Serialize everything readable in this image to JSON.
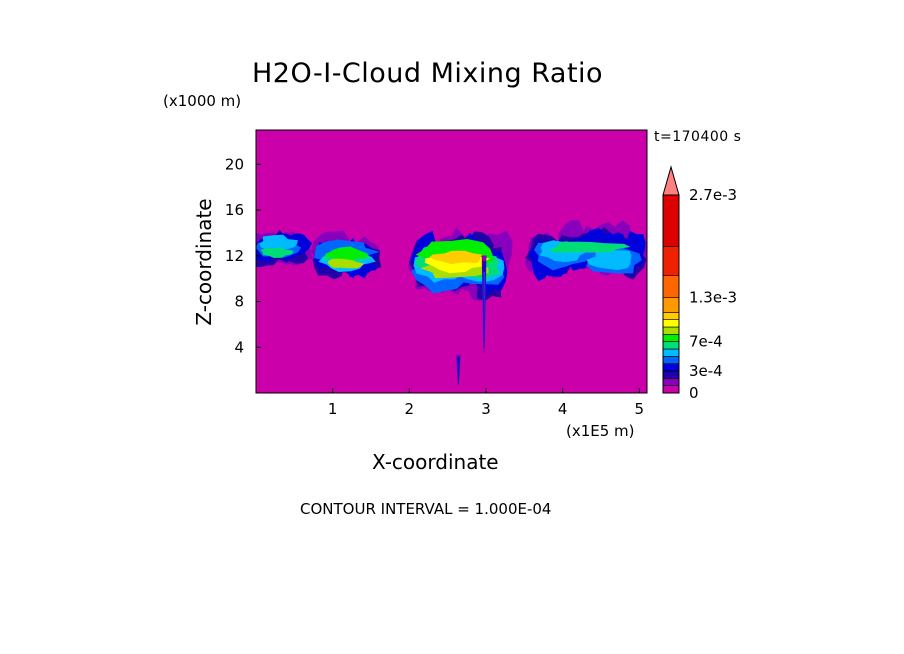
{
  "title": "H2O-I-Cloud Mixing Ratio",
  "z_unit": "(x1000 m)",
  "x_unit": "(x1E5 m)",
  "time_label": "t=170400 s",
  "contour_interval": "CONTOUR INTERVAL = 1.000E-04",
  "chart_data": {
    "type": "heatmap",
    "title": "H2O-I-Cloud Mixing Ratio",
    "xlabel": "X-coordinate",
    "ylabel": "Z-coordinate",
    "xlim": [
      0,
      5.1
    ],
    "ylim": [
      0,
      23
    ],
    "xticks": [
      1,
      2,
      3,
      4,
      5
    ],
    "yticks": [
      4,
      8,
      12,
      16,
      20
    ],
    "colorbar": {
      "ticks": [
        "2.7e-3",
        "1.3e-3",
        "7e-4",
        "3e-4",
        "0"
      ],
      "tick_values": [
        0.0027,
        0.0013,
        0.0007,
        0.0003,
        0
      ],
      "levels": [
        0,
        0.0001,
        0.0002,
        0.0003,
        0.0004,
        0.0005,
        0.0006,
        0.0007,
        0.0008,
        0.0009,
        0.001,
        0.0011,
        0.0013,
        0.0016,
        0.002,
        0.0027
      ],
      "colors": [
        "#cc00aa",
        "#8800bb",
        "#2200aa",
        "#0000dd",
        "#0066ff",
        "#00bbff",
        "#00dd77",
        "#00ee00",
        "#aadd00",
        "#ffff00",
        "#ffcc00",
        "#ff9900",
        "#ff6600",
        "#ee2200",
        "#dd0000",
        "#ff8080"
      ],
      "extend": "max"
    },
    "background_color": "#cc00aa",
    "features": [
      {
        "name": "left cloud",
        "x_range": [
          0.0,
          0.65
        ],
        "z_range": [
          10.5,
          14.0
        ],
        "max_level": 6
      },
      {
        "name": "cloud near 1.1",
        "x_range": [
          0.85,
          1.55
        ],
        "z_range": [
          9.5,
          13.5
        ],
        "max_level": 8
      },
      {
        "name": "central cloud cluster",
        "x_range": [
          2.1,
          3.25
        ],
        "z_range": [
          8.0,
          13.5
        ],
        "max_level": 10
      },
      {
        "name": "right cloud band",
        "x_range": [
          3.55,
          5.1
        ],
        "z_range": [
          9.5,
          14.0
        ],
        "max_level": 6
      },
      {
        "name": "fall streak near 3.0",
        "x_range": [
          2.95,
          3.0
        ],
        "z_range": [
          3.0,
          12.5
        ],
        "max_level": 4
      },
      {
        "name": "fall streak near 2.65",
        "x_range": [
          2.62,
          2.66
        ],
        "z_range": [
          0.5,
          3.5
        ],
        "max_level": 3
      }
    ]
  }
}
